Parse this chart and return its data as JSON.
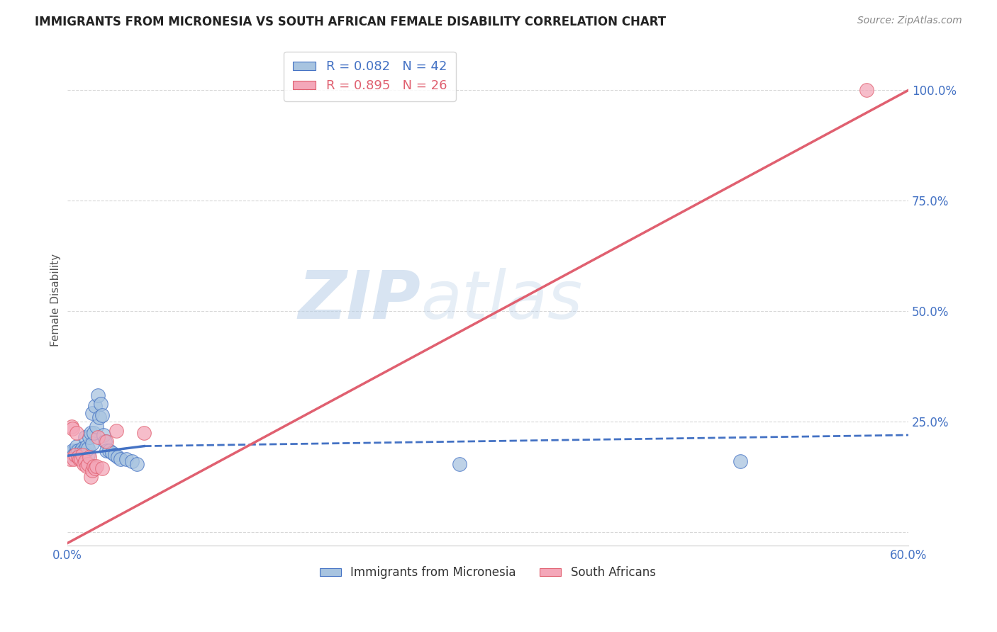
{
  "title": "IMMIGRANTS FROM MICRONESIA VS SOUTH AFRICAN FEMALE DISABILITY CORRELATION CHART",
  "source": "Source: ZipAtlas.com",
  "ylabel": "Female Disability",
  "xlim": [
    0.0,
    0.6
  ],
  "ylim": [
    -0.03,
    1.08
  ],
  "blue_R": 0.082,
  "blue_N": 42,
  "pink_R": 0.895,
  "pink_N": 26,
  "blue_color": "#a8c4e0",
  "pink_color": "#f4a7b9",
  "blue_line_color": "#4472c4",
  "pink_line_color": "#e06070",
  "legend_blue_label": "R = 0.082   N = 42",
  "legend_pink_label": "R = 0.895   N = 26",
  "blue_scatter_x": [
    0.002,
    0.003,
    0.004,
    0.005,
    0.006,
    0.007,
    0.007,
    0.008,
    0.009,
    0.01,
    0.01,
    0.011,
    0.012,
    0.013,
    0.013,
    0.014,
    0.015,
    0.015,
    0.016,
    0.017,
    0.018,
    0.018,
    0.019,
    0.02,
    0.021,
    0.022,
    0.023,
    0.024,
    0.025,
    0.026,
    0.027,
    0.028,
    0.03,
    0.032,
    0.034,
    0.036,
    0.038,
    0.042,
    0.046,
    0.05,
    0.28,
    0.48
  ],
  "blue_scatter_y": [
    0.175,
    0.18,
    0.185,
    0.175,
    0.175,
    0.185,
    0.195,
    0.185,
    0.175,
    0.175,
    0.185,
    0.19,
    0.185,
    0.18,
    0.215,
    0.195,
    0.175,
    0.19,
    0.215,
    0.225,
    0.27,
    0.2,
    0.225,
    0.285,
    0.24,
    0.31,
    0.26,
    0.29,
    0.265,
    0.22,
    0.205,
    0.185,
    0.185,
    0.18,
    0.175,
    0.17,
    0.165,
    0.165,
    0.16,
    0.155,
    0.155,
    0.16
  ],
  "pink_scatter_x": [
    0.002,
    0.003,
    0.004,
    0.005,
    0.006,
    0.007,
    0.008,
    0.009,
    0.01,
    0.011,
    0.012,
    0.013,
    0.014,
    0.015,
    0.016,
    0.017,
    0.018,
    0.019,
    0.02,
    0.021,
    0.022,
    0.025,
    0.028,
    0.035,
    0.055,
    0.57
  ],
  "pink_scatter_y": [
    0.165,
    0.24,
    0.235,
    0.165,
    0.175,
    0.225,
    0.17,
    0.165,
    0.165,
    0.175,
    0.155,
    0.16,
    0.15,
    0.155,
    0.17,
    0.125,
    0.14,
    0.15,
    0.145,
    0.15,
    0.215,
    0.145,
    0.205,
    0.23,
    0.225,
    1.0
  ],
  "blue_line_x0": 0.0,
  "blue_line_x_solid_end": 0.055,
  "blue_line_x1": 0.6,
  "blue_line_y0": 0.173,
  "blue_line_y_solid_end": 0.195,
  "blue_line_y1": 0.22,
  "pink_line_x0": 0.0,
  "pink_line_x1": 0.6,
  "pink_line_y0": -0.025,
  "pink_line_y1": 1.0,
  "watermark_zip": "ZIP",
  "watermark_atlas": "atlas",
  "background_color": "#ffffff",
  "grid_color": "#d8d8d8"
}
